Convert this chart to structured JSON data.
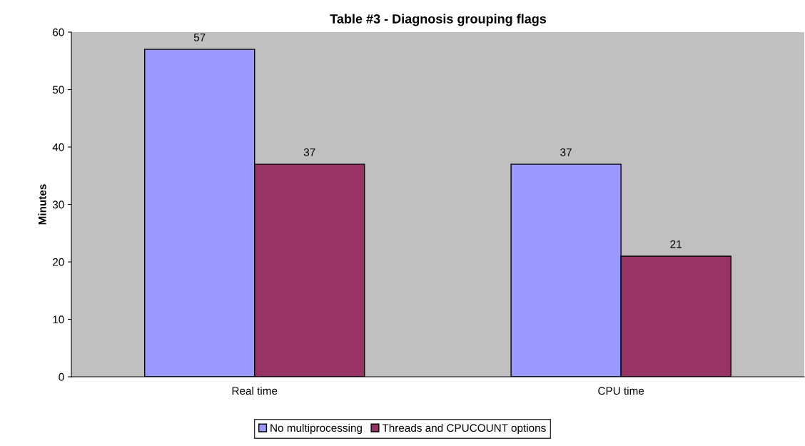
{
  "chart_data": {
    "type": "bar",
    "title": "Table #3 - Diagnosis grouping flags",
    "ylabel": "Minutes",
    "categories": [
      "Real time",
      "CPU time"
    ],
    "series": [
      {
        "name": "No multiprocessing",
        "color": "#9999ff",
        "values": [
          57,
          37
        ]
      },
      {
        "name": "Threads and CPUCOUNT options",
        "color": "#993366",
        "values": [
          37,
          21
        ]
      }
    ],
    "ylim": [
      0,
      60
    ],
    "yticks": [
      0,
      10,
      20,
      30,
      40,
      50,
      60
    ],
    "grid": false,
    "legend": "bottom",
    "data_labels": true
  }
}
